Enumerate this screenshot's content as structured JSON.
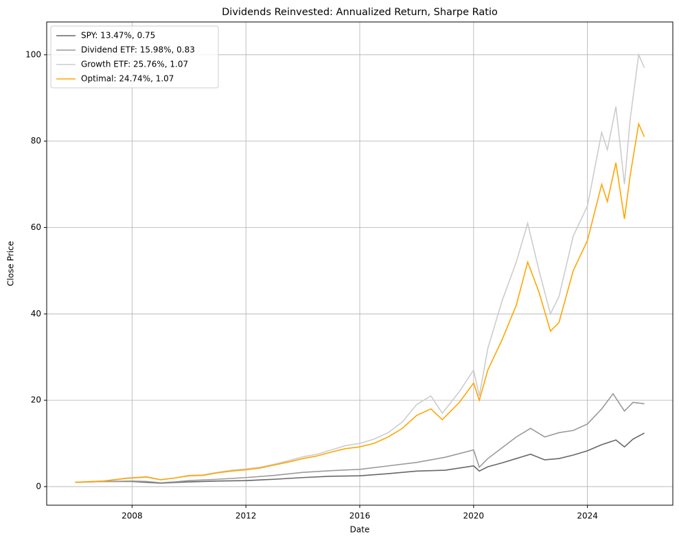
{
  "chart_data": {
    "type": "line",
    "title": "Dividends Reinvested: Annualized Return, Sharpe Ratio",
    "x_label": "Date",
    "y_label": "Close Price",
    "xlim": [
      2005,
      2027
    ],
    "ylim": [
      -4.3,
      107.6
    ],
    "xticks": [
      2008,
      2012,
      2016,
      2020,
      2024
    ],
    "yticks": [
      0,
      20,
      40,
      60,
      80,
      100
    ],
    "grid": true,
    "legend": "upper left",
    "series": [
      {
        "name": "SPY: 13.47%, 0.75",
        "color": "#666666",
        "x": [
          2006,
          2007,
          2008,
          2009,
          2010,
          2011,
          2012,
          2013,
          2014,
          2015,
          2016,
          2017,
          2018,
          2019,
          2020,
          2020.2,
          2020.5,
          2021,
          2021.5,
          2022,
          2022.5,
          2023,
          2023.5,
          2024,
          2024.5,
          2025,
          2025.3,
          2025.6,
          2026
        ],
        "values": [
          1,
          1.2,
          1.2,
          0.8,
          1.1,
          1.3,
          1.4,
          1.7,
          2.1,
          2.4,
          2.5,
          3.0,
          3.6,
          3.8,
          4.8,
          3.6,
          4.6,
          5.5,
          6.5,
          7.5,
          6.2,
          6.5,
          7.3,
          8.3,
          9.7,
          10.8,
          9.2,
          11,
          12.4
        ]
      },
      {
        "name": "Dividend ETF: 15.98%, 0.83",
        "color": "#999999",
        "x": [
          2006,
          2007,
          2008,
          2008.5,
          2009,
          2009.5,
          2010,
          2011,
          2012,
          2013,
          2014,
          2015,
          2016,
          2017,
          2018,
          2019,
          2020,
          2020.2,
          2020.5,
          2021,
          2021.5,
          2022,
          2022.5,
          2023,
          2023.5,
          2024,
          2024.5,
          2024.9,
          2025.3,
          2025.6,
          2026
        ],
        "values": [
          1,
          1.2,
          1.3,
          1.2,
          0.9,
          1.1,
          1.4,
          1.7,
          2.1,
          2.6,
          3.3,
          3.7,
          4.0,
          4.8,
          5.6,
          6.8,
          8.5,
          4.5,
          6.5,
          9,
          11.5,
          13.5,
          11.5,
          12.5,
          13,
          14.5,
          18,
          21.5,
          17.5,
          19.5,
          19.2
        ]
      },
      {
        "name": "Growth ETF: 25.76%, 1.07",
        "color": "#cccccc",
        "x": [
          2006,
          2007,
          2007.8,
          2008.5,
          2009,
          2009.5,
          2010,
          2010.5,
          2011,
          2011.5,
          2012,
          2012.5,
          2013,
          2013.5,
          2014,
          2014.5,
          2015,
          2015.5,
          2016,
          2016.5,
          2017,
          2017.5,
          2018,
          2018.5,
          2018.9,
          2019.5,
          2020,
          2020.2,
          2020.5,
          2021,
          2021.5,
          2021.9,
          2022.3,
          2022.7,
          2023,
          2023.5,
          2024,
          2024.5,
          2024.7,
          2025,
          2025.3,
          2025.5,
          2025.8,
          2026
        ],
        "values": [
          1,
          1.3,
          2.0,
          2.3,
          1.6,
          2.0,
          2.6,
          2.7,
          3.3,
          3.8,
          4.1,
          4.5,
          5.2,
          6.0,
          6.9,
          7.5,
          8.5,
          9.5,
          10.0,
          11.0,
          12.5,
          15,
          19,
          21,
          17,
          22,
          27,
          21,
          32,
          43,
          52,
          61,
          50,
          40,
          44,
          58,
          65,
          82,
          78,
          88,
          70,
          85,
          100,
          97
        ]
      },
      {
        "name": "Optimal: 24.74%, 1.07",
        "color": "#ffa500",
        "x": [
          2006,
          2007,
          2007.8,
          2008.5,
          2009,
          2009.5,
          2010,
          2010.5,
          2011,
          2011.5,
          2012,
          2012.5,
          2013,
          2013.5,
          2014,
          2014.5,
          2015,
          2015.5,
          2016,
          2016.5,
          2017,
          2017.5,
          2018,
          2018.5,
          2018.9,
          2019.5,
          2020,
          2020.2,
          2020.5,
          2021,
          2021.5,
          2021.9,
          2022.3,
          2022.7,
          2023,
          2023.5,
          2024,
          2024.5,
          2024.7,
          2025,
          2025.3,
          2025.5,
          2025.8,
          2026
        ],
        "values": [
          1,
          1.3,
          1.9,
          2.2,
          1.6,
          2.0,
          2.5,
          2.6,
          3.2,
          3.6,
          3.9,
          4.3,
          5.0,
          5.7,
          6.5,
          7.1,
          8.0,
          8.8,
          9.2,
          10.0,
          11.5,
          13.5,
          16.5,
          18,
          15.5,
          19.5,
          24,
          20,
          27,
          34,
          42,
          52,
          45,
          36,
          38,
          50,
          57,
          70,
          66,
          75,
          62,
          72,
          84,
          81
        ]
      }
    ]
  }
}
